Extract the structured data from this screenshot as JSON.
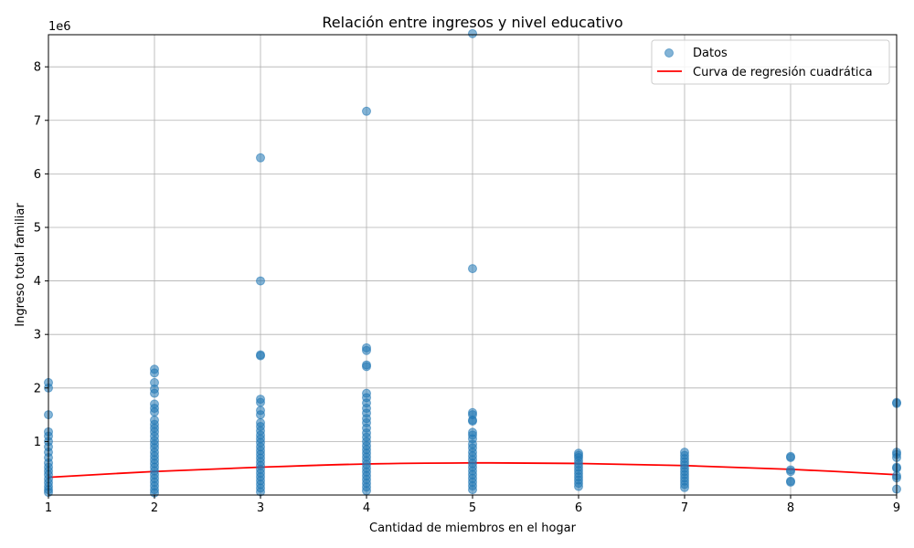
{
  "chart_data": {
    "type": "scatter",
    "title": "Relación entre ingresos y nivel educativo",
    "xlabel": "Cantidad de miembros en el hogar",
    "ylabel": "Ingreso total familiar",
    "y_offset_text": "1e6",
    "xlim": [
      1,
      9
    ],
    "ylim": [
      0,
      8600000
    ],
    "x_ticks": [
      "1",
      "2",
      "3",
      "4",
      "5",
      "6",
      "7",
      "8",
      "9"
    ],
    "y_ticks": [
      {
        "value": 1000000,
        "label": "1"
      },
      {
        "value": 2000000,
        "label": "2"
      },
      {
        "value": 3000000,
        "label": "3"
      },
      {
        "value": 4000000,
        "label": "4"
      },
      {
        "value": 5000000,
        "label": "5"
      },
      {
        "value": 6000000,
        "label": "6"
      },
      {
        "value": 7000000,
        "label": "7"
      },
      {
        "value": 8000000,
        "label": "8"
      }
    ],
    "grid": true,
    "legend_position": "top-right",
    "colors": {
      "points": "#1f77b4",
      "regression": "#ff0000",
      "grid": "#b0b0b0"
    },
    "series": [
      {
        "name": "Datos",
        "kind": "scatter",
        "points": [
          {
            "x": 1,
            "y": 2100000
          },
          {
            "x": 1,
            "y": 2000000
          },
          {
            "x": 1,
            "y": 1500000
          },
          {
            "x": 1,
            "y": 1180000
          },
          {
            "x": 1,
            "y": 1100000
          },
          {
            "x": 1,
            "y": 1000000
          },
          {
            "x": 1,
            "y": 900000
          },
          {
            "x": 1,
            "y": 800000
          },
          {
            "x": 1,
            "y": 700000
          },
          {
            "x": 1,
            "y": 600000
          },
          {
            "x": 1,
            "y": 520000
          },
          {
            "x": 1,
            "y": 450000
          },
          {
            "x": 1,
            "y": 380000
          },
          {
            "x": 1,
            "y": 300000
          },
          {
            "x": 1,
            "y": 230000
          },
          {
            "x": 1,
            "y": 160000
          },
          {
            "x": 1,
            "y": 100000
          },
          {
            "x": 1,
            "y": 50000
          },
          {
            "x": 2,
            "y": 2350000
          },
          {
            "x": 2,
            "y": 2280000
          },
          {
            "x": 2,
            "y": 2100000
          },
          {
            "x": 2,
            "y": 1980000
          },
          {
            "x": 2,
            "y": 1900000
          },
          {
            "x": 2,
            "y": 1700000
          },
          {
            "x": 2,
            "y": 1620000
          },
          {
            "x": 2,
            "y": 1550000
          },
          {
            "x": 2,
            "y": 1400000
          },
          {
            "x": 2,
            "y": 1320000
          },
          {
            "x": 2,
            "y": 1250000
          },
          {
            "x": 2,
            "y": 1180000
          },
          {
            "x": 2,
            "y": 1100000
          },
          {
            "x": 2,
            "y": 1020000
          },
          {
            "x": 2,
            "y": 950000
          },
          {
            "x": 2,
            "y": 880000
          },
          {
            "x": 2,
            "y": 800000
          },
          {
            "x": 2,
            "y": 730000
          },
          {
            "x": 2,
            "y": 660000
          },
          {
            "x": 2,
            "y": 590000
          },
          {
            "x": 2,
            "y": 520000
          },
          {
            "x": 2,
            "y": 450000
          },
          {
            "x": 2,
            "y": 380000
          },
          {
            "x": 2,
            "y": 310000
          },
          {
            "x": 2,
            "y": 240000
          },
          {
            "x": 2,
            "y": 170000
          },
          {
            "x": 2,
            "y": 100000
          },
          {
            "x": 2,
            "y": 40000
          },
          {
            "x": 3,
            "y": 6300000
          },
          {
            "x": 3,
            "y": 4000000
          },
          {
            "x": 3,
            "y": 2620000
          },
          {
            "x": 3,
            "y": 2600000
          },
          {
            "x": 3,
            "y": 1790000
          },
          {
            "x": 3,
            "y": 1730000
          },
          {
            "x": 3,
            "y": 1580000
          },
          {
            "x": 3,
            "y": 1500000
          },
          {
            "x": 3,
            "y": 1350000
          },
          {
            "x": 3,
            "y": 1280000
          },
          {
            "x": 3,
            "y": 1200000
          },
          {
            "x": 3,
            "y": 1120000
          },
          {
            "x": 3,
            "y": 1050000
          },
          {
            "x": 3,
            "y": 980000
          },
          {
            "x": 3,
            "y": 900000
          },
          {
            "x": 3,
            "y": 830000
          },
          {
            "x": 3,
            "y": 760000
          },
          {
            "x": 3,
            "y": 690000
          },
          {
            "x": 3,
            "y": 620000
          },
          {
            "x": 3,
            "y": 550000
          },
          {
            "x": 3,
            "y": 480000
          },
          {
            "x": 3,
            "y": 410000
          },
          {
            "x": 3,
            "y": 340000
          },
          {
            "x": 3,
            "y": 270000
          },
          {
            "x": 3,
            "y": 200000
          },
          {
            "x": 3,
            "y": 130000
          },
          {
            "x": 3,
            "y": 60000
          },
          {
            "x": 4,
            "y": 7170000
          },
          {
            "x": 4,
            "y": 2750000
          },
          {
            "x": 4,
            "y": 2700000
          },
          {
            "x": 4,
            "y": 2430000
          },
          {
            "x": 4,
            "y": 2400000
          },
          {
            "x": 4,
            "y": 1900000
          },
          {
            "x": 4,
            "y": 1820000
          },
          {
            "x": 4,
            "y": 1720000
          },
          {
            "x": 4,
            "y": 1620000
          },
          {
            "x": 4,
            "y": 1530000
          },
          {
            "x": 4,
            "y": 1430000
          },
          {
            "x": 4,
            "y": 1350000
          },
          {
            "x": 4,
            "y": 1250000
          },
          {
            "x": 4,
            "y": 1160000
          },
          {
            "x": 4,
            "y": 1080000
          },
          {
            "x": 4,
            "y": 1000000
          },
          {
            "x": 4,
            "y": 920000
          },
          {
            "x": 4,
            "y": 850000
          },
          {
            "x": 4,
            "y": 780000
          },
          {
            "x": 4,
            "y": 710000
          },
          {
            "x": 4,
            "y": 640000
          },
          {
            "x": 4,
            "y": 570000
          },
          {
            "x": 4,
            "y": 500000
          },
          {
            "x": 4,
            "y": 430000
          },
          {
            "x": 4,
            "y": 360000
          },
          {
            "x": 4,
            "y": 290000
          },
          {
            "x": 4,
            "y": 220000
          },
          {
            "x": 4,
            "y": 150000
          },
          {
            "x": 4,
            "y": 80000
          },
          {
            "x": 5,
            "y": 8620000
          },
          {
            "x": 5,
            "y": 4230000
          },
          {
            "x": 5,
            "y": 1540000
          },
          {
            "x": 5,
            "y": 1500000
          },
          {
            "x": 5,
            "y": 1400000
          },
          {
            "x": 5,
            "y": 1380000
          },
          {
            "x": 5,
            "y": 1170000
          },
          {
            "x": 5,
            "y": 1120000
          },
          {
            "x": 5,
            "y": 1050000
          },
          {
            "x": 5,
            "y": 950000
          },
          {
            "x": 5,
            "y": 880000
          },
          {
            "x": 5,
            "y": 800000
          },
          {
            "x": 5,
            "y": 730000
          },
          {
            "x": 5,
            "y": 660000
          },
          {
            "x": 5,
            "y": 590000
          },
          {
            "x": 5,
            "y": 520000
          },
          {
            "x": 5,
            "y": 450000
          },
          {
            "x": 5,
            "y": 380000
          },
          {
            "x": 5,
            "y": 310000
          },
          {
            "x": 5,
            "y": 240000
          },
          {
            "x": 5,
            "y": 170000
          },
          {
            "x": 5,
            "y": 100000
          },
          {
            "x": 6,
            "y": 780000
          },
          {
            "x": 6,
            "y": 740000
          },
          {
            "x": 6,
            "y": 700000
          },
          {
            "x": 6,
            "y": 640000
          },
          {
            "x": 6,
            "y": 580000
          },
          {
            "x": 6,
            "y": 520000
          },
          {
            "x": 6,
            "y": 460000
          },
          {
            "x": 6,
            "y": 400000
          },
          {
            "x": 6,
            "y": 340000
          },
          {
            "x": 6,
            "y": 280000
          },
          {
            "x": 6,
            "y": 220000
          },
          {
            "x": 6,
            "y": 160000
          },
          {
            "x": 7,
            "y": 800000
          },
          {
            "x": 7,
            "y": 740000
          },
          {
            "x": 7,
            "y": 680000
          },
          {
            "x": 7,
            "y": 620000
          },
          {
            "x": 7,
            "y": 560000
          },
          {
            "x": 7,
            "y": 500000
          },
          {
            "x": 7,
            "y": 440000
          },
          {
            "x": 7,
            "y": 380000
          },
          {
            "x": 7,
            "y": 320000
          },
          {
            "x": 7,
            "y": 260000
          },
          {
            "x": 7,
            "y": 200000
          },
          {
            "x": 7,
            "y": 140000
          },
          {
            "x": 8,
            "y": 720000
          },
          {
            "x": 8,
            "y": 700000
          },
          {
            "x": 8,
            "y": 470000
          },
          {
            "x": 8,
            "y": 440000
          },
          {
            "x": 8,
            "y": 260000
          },
          {
            "x": 8,
            "y": 240000
          },
          {
            "x": 9,
            "y": 1730000
          },
          {
            "x": 9,
            "y": 1710000
          },
          {
            "x": 9,
            "y": 800000
          },
          {
            "x": 9,
            "y": 760000
          },
          {
            "x": 9,
            "y": 700000
          },
          {
            "x": 9,
            "y": 520000
          },
          {
            "x": 9,
            "y": 500000
          },
          {
            "x": 9,
            "y": 360000
          },
          {
            "x": 9,
            "y": 320000
          },
          {
            "x": 9,
            "y": 110000
          }
        ]
      },
      {
        "name": "Curva de regresión cuadrática",
        "kind": "line",
        "points": [
          {
            "x": 1,
            "y": 330000
          },
          {
            "x": 2,
            "y": 440000
          },
          {
            "x": 3,
            "y": 520000
          },
          {
            "x": 4,
            "y": 580000
          },
          {
            "x": 5,
            "y": 600000
          },
          {
            "x": 6,
            "y": 590000
          },
          {
            "x": 7,
            "y": 550000
          },
          {
            "x": 8,
            "y": 480000
          },
          {
            "x": 9,
            "y": 380000
          }
        ]
      }
    ]
  }
}
